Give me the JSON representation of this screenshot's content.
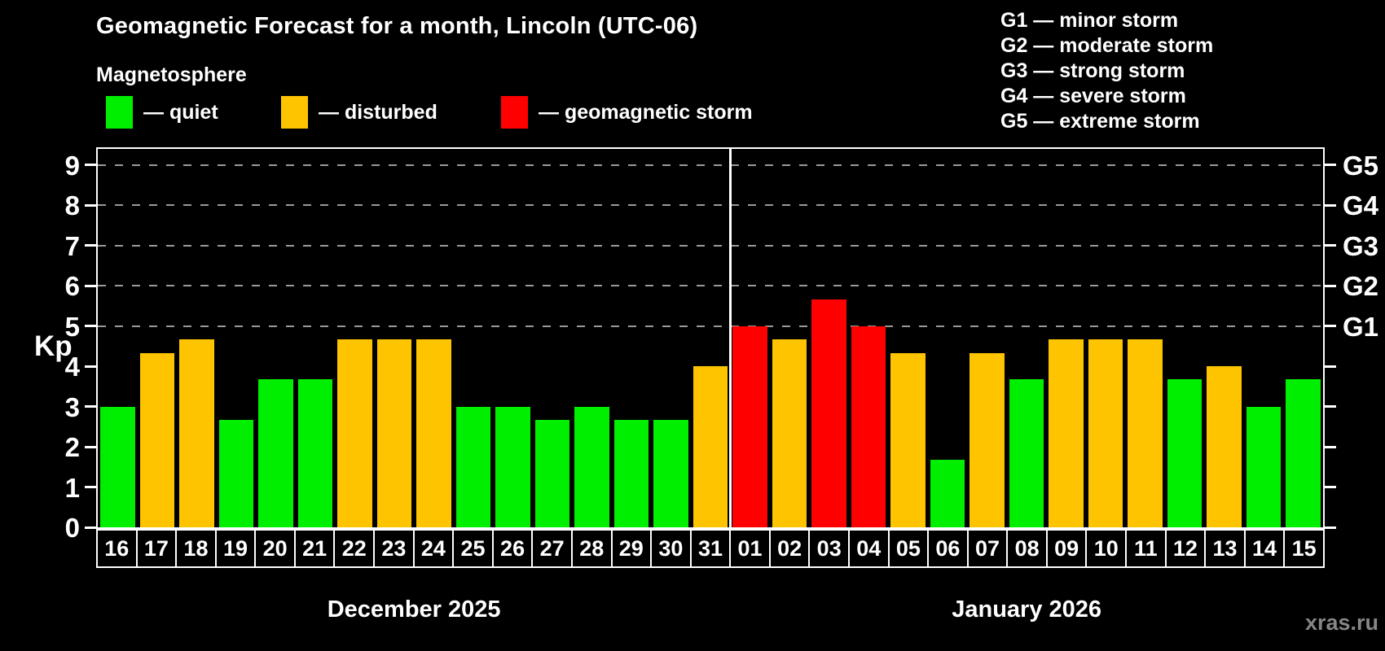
{
  "title": "Geomagnetic Forecast for a month, Lincoln (UTC-06)",
  "subtitle": "Magnetosphere",
  "legend": {
    "items": [
      {
        "label": "— quiet",
        "color": "#00ee00",
        "status": "quiet"
      },
      {
        "label": "— disturbed",
        "color": "#ffc400",
        "status": "disturbed"
      },
      {
        "label": "— geomagnetic storm",
        "color": "#ff0000",
        "status": "storm"
      }
    ]
  },
  "storm_scale_legend": [
    "G1 — minor storm",
    "G2 — moderate storm",
    "G3 — strong storm",
    "G4 — severe storm",
    "G5 — extreme storm"
  ],
  "watermark": {
    "text": "xras.ru",
    "color": "#868686"
  },
  "chart_data": {
    "type": "bar",
    "ylabel": "Kp",
    "ylim": [
      0,
      9.4
    ],
    "yticks": [
      0,
      1,
      2,
      3,
      4,
      5,
      6,
      7,
      8,
      9
    ],
    "dashed_gridlines_at_kp": [
      5,
      6,
      7,
      8,
      9
    ],
    "grid_color": "#9a9a9a",
    "right_axis_labels": [
      {
        "kp": 5,
        "label": "G1"
      },
      {
        "kp": 6,
        "label": "G2"
      },
      {
        "kp": 7,
        "label": "G3"
      },
      {
        "kp": 8,
        "label": "G4"
      },
      {
        "kp": 9,
        "label": "G5"
      }
    ],
    "status_colors": {
      "quiet": "#00ee00",
      "disturbed": "#ffc400",
      "storm": "#ff0000"
    },
    "groups": [
      {
        "label": "December 2025",
        "days": [
          {
            "day": "16",
            "kp": 3.0,
            "status": "quiet"
          },
          {
            "day": "17",
            "kp": 4.33,
            "status": "disturbed"
          },
          {
            "day": "18",
            "kp": 4.67,
            "status": "disturbed"
          },
          {
            "day": "19",
            "kp": 2.67,
            "status": "quiet"
          },
          {
            "day": "20",
            "kp": 3.67,
            "status": "quiet"
          },
          {
            "day": "21",
            "kp": 3.67,
            "status": "quiet"
          },
          {
            "day": "22",
            "kp": 4.67,
            "status": "disturbed"
          },
          {
            "day": "23",
            "kp": 4.67,
            "status": "disturbed"
          },
          {
            "day": "24",
            "kp": 4.67,
            "status": "disturbed"
          },
          {
            "day": "25",
            "kp": 3.0,
            "status": "quiet"
          },
          {
            "day": "26",
            "kp": 3.0,
            "status": "quiet"
          },
          {
            "day": "27",
            "kp": 2.67,
            "status": "quiet"
          },
          {
            "day": "28",
            "kp": 3.0,
            "status": "quiet"
          },
          {
            "day": "29",
            "kp": 2.67,
            "status": "quiet"
          },
          {
            "day": "30",
            "kp": 2.67,
            "status": "quiet"
          },
          {
            "day": "31",
            "kp": 4.0,
            "status": "disturbed"
          }
        ]
      },
      {
        "label": "January 2026",
        "days": [
          {
            "day": "01",
            "kp": 5.0,
            "status": "storm"
          },
          {
            "day": "02",
            "kp": 4.67,
            "status": "disturbed"
          },
          {
            "day": "03",
            "kp": 5.67,
            "status": "storm"
          },
          {
            "day": "04",
            "kp": 5.0,
            "status": "storm"
          },
          {
            "day": "05",
            "kp": 4.33,
            "status": "disturbed"
          },
          {
            "day": "06",
            "kp": 1.67,
            "status": "quiet"
          },
          {
            "day": "07",
            "kp": 4.33,
            "status": "disturbed"
          },
          {
            "day": "08",
            "kp": 3.67,
            "status": "quiet"
          },
          {
            "day": "09",
            "kp": 4.67,
            "status": "disturbed"
          },
          {
            "day": "10",
            "kp": 4.67,
            "status": "disturbed"
          },
          {
            "day": "11",
            "kp": 4.67,
            "status": "disturbed"
          },
          {
            "day": "12",
            "kp": 3.67,
            "status": "quiet"
          },
          {
            "day": "13",
            "kp": 4.0,
            "status": "disturbed"
          },
          {
            "day": "14",
            "kp": 3.0,
            "status": "quiet"
          },
          {
            "day": "15",
            "kp": 3.67,
            "status": "quiet"
          }
        ]
      }
    ]
  }
}
